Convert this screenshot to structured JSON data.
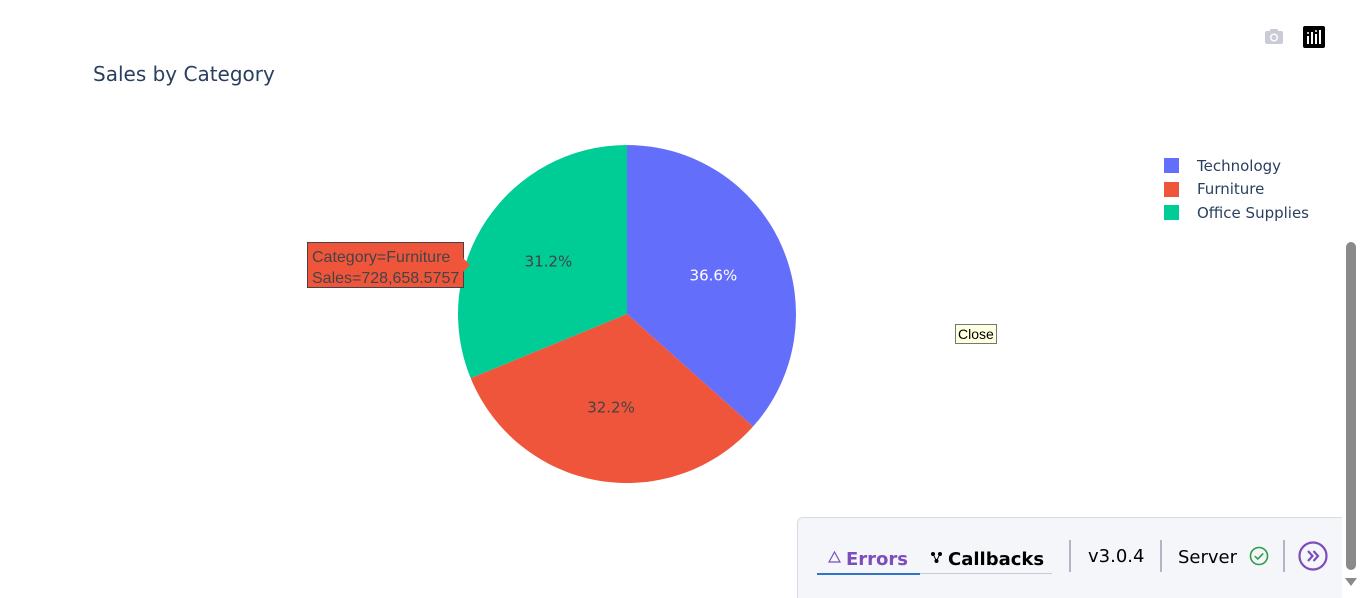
{
  "chart_data": {
    "type": "pie",
    "title": "Sales by Category",
    "labels": [
      "Technology",
      "Furniture",
      "Office Supplies"
    ],
    "percent_labels": [
      "36.6%",
      "32.2%",
      "31.2%"
    ],
    "values": [
      0.366,
      0.322,
      0.312
    ],
    "colors": [
      "#636efa",
      "#ef553b",
      "#00cc96"
    ],
    "legend_position": "top-right",
    "hover": {
      "line1": "Category=Furniture",
      "line2": "Sales=728,658.5757"
    }
  },
  "tooltip": {
    "close_label": "Close"
  },
  "modebar": {
    "icons": [
      "camera-icon",
      "plotly-logo-icon"
    ]
  },
  "devtools": {
    "errors_label": "Errors",
    "callbacks_label": "Callbacks",
    "version": "v3.0.4",
    "server_label": "Server",
    "accent_color": "#7c4dbc"
  }
}
